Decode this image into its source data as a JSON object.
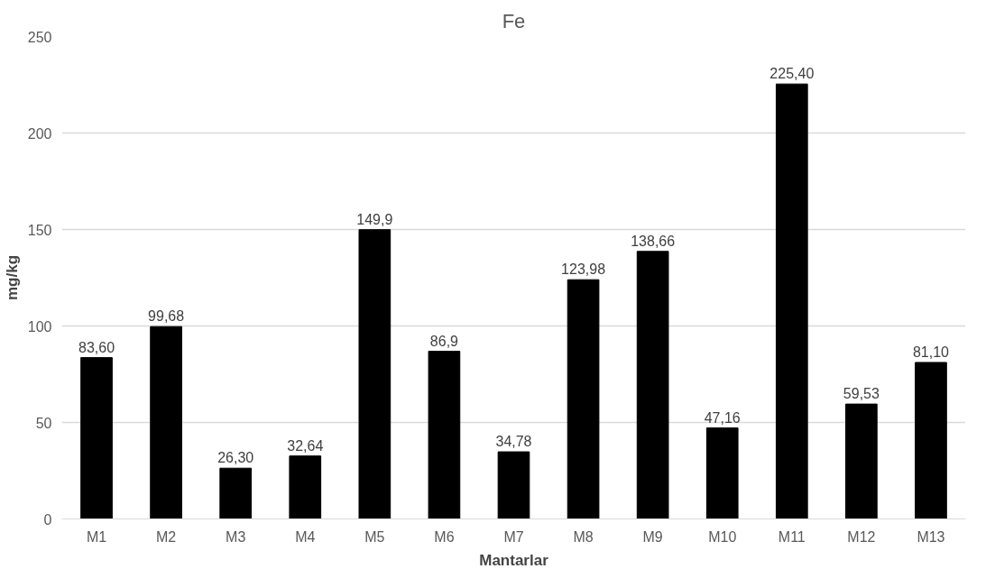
{
  "chart_data": {
    "type": "bar",
    "title": "Fe",
    "xlabel": "Mantarlar",
    "ylabel": "mg/kg",
    "categories": [
      "M1",
      "M2",
      "M3",
      "M4",
      "M5",
      "M6",
      "M7",
      "M8",
      "M9",
      "M10",
      "M11",
      "M12",
      "M13"
    ],
    "values": [
      83.6,
      99.68,
      26.3,
      32.64,
      149.9,
      86.9,
      34.78,
      123.98,
      138.66,
      47.16,
      225.4,
      59.53,
      81.1
    ],
    "value_labels": [
      "83,60",
      "99,68",
      "26,30",
      "32,64",
      "149,9",
      "86,9",
      "34,78",
      "123,98",
      "138,66",
      "47,16",
      "225,40",
      "59,53",
      "81,10"
    ],
    "color": "#000000",
    "ylim": [
      0,
      250
    ],
    "yticks": [
      0,
      50,
      100,
      150,
      200,
      250
    ],
    "grid": "y"
  }
}
